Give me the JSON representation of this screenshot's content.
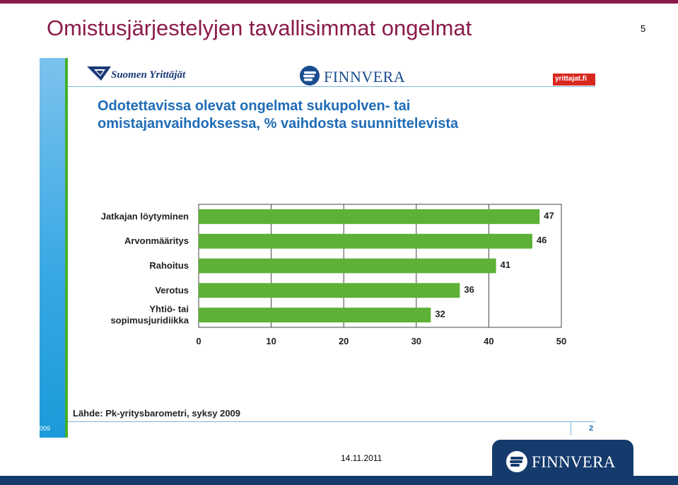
{
  "slide": {
    "title": "Omistusjärjestelyjen tavallisimmat ongelmat",
    "page_number": "5",
    "footer_date": "14.11.2011",
    "footer_logo_text": "FINNVERA"
  },
  "embedded": {
    "logo_left_text": "Suomen Yrittäjät",
    "logo_center_text": "FINNVERA",
    "badge_text": "yrittajat.fi",
    "corner_left": "009",
    "corner_right": "2",
    "source": "Lähde: Pk-yritysbarometri, syksy 2009"
  },
  "colors": {
    "title": "#8b1a4a",
    "chart_title": "#1f6cb6",
    "bar": "#5db136",
    "navy": "#153b6d"
  },
  "chart_data": {
    "type": "bar",
    "orientation": "horizontal",
    "title": "Odotettavissa olevat ongelmat sukupolven- tai omistajanvaihdoksessa, % vaihdosta suunnittelevista",
    "categories": [
      "Jatkajan löytyminen",
      "Arvonmääritys",
      "Rahoitus",
      "Verotus",
      "Yhtiö- tai sopimusjuridiikka"
    ],
    "values": [
      47,
      46,
      41,
      36,
      32
    ],
    "xlim": [
      0,
      50
    ],
    "ticks": [
      "0",
      "10",
      "20",
      "30",
      "40",
      "50"
    ],
    "grid": true,
    "data_labels": true
  }
}
